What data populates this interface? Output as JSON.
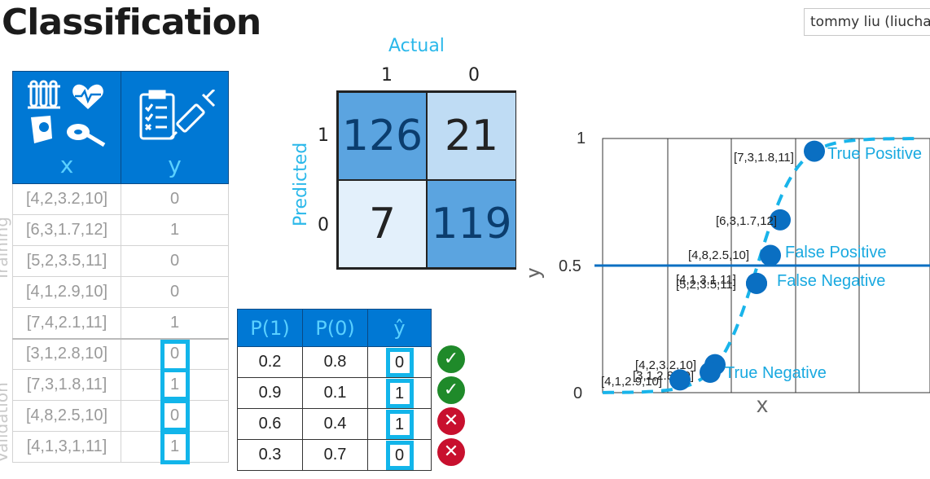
{
  "title": "Classification",
  "user": "tommy liu (liuchangwei@outlook.com)",
  "colors": {
    "accent": "#0078d4",
    "highlight": "#12b5ea",
    "label": "#2bb8ea"
  },
  "data_table": {
    "headers": [
      "x",
      "y"
    ],
    "header_icons": [
      "test-tubes-icon",
      "heart-rate-icon",
      "stethoscope-icon",
      "tape-measure-icon",
      "clipboard-checklist-icon",
      "syringe-icon"
    ],
    "training_label": "Training",
    "validation_label": "Validation",
    "training_rows": [
      {
        "x": "[4,2,3.2,10]",
        "y": "0"
      },
      {
        "x": "[6,3,1.7,12]",
        "y": "1"
      },
      {
        "x": "[5,2,3.5,11]",
        "y": "0"
      },
      {
        "x": "[4,1,2.9,10]",
        "y": "0"
      },
      {
        "x": "[7,4,2.1,11]",
        "y": "1"
      }
    ],
    "validation_rows": [
      {
        "x": "[3,1,2.8,10]",
        "y": "0"
      },
      {
        "x": "[7,3,1.8,11]",
        "y": "1"
      },
      {
        "x": "[4,8,2.5,10]",
        "y": "0"
      },
      {
        "x": "[4,1,3,1,11]",
        "y": "1"
      }
    ]
  },
  "confusion_matrix": {
    "actual_label": "Actual",
    "predicted_label": "Predicted",
    "col_labels": [
      "1",
      "0"
    ],
    "row_labels": [
      "1",
      "0"
    ],
    "cells": [
      {
        "value": "126",
        "color": "#5ba4e0"
      },
      {
        "value": "21",
        "color": "#bfdcf4"
      },
      {
        "value": "7",
        "color": "#e3f0fb"
      },
      {
        "value": "119",
        "color": "#5ba4e0"
      }
    ]
  },
  "prob_table": {
    "headers": [
      "P(1)",
      "P(0)",
      "ŷ"
    ],
    "rows": [
      {
        "p1": "0.2",
        "p0": "0.8",
        "yhat": "0",
        "correct": true
      },
      {
        "p1": "0.9",
        "p0": "0.1",
        "yhat": "1",
        "correct": true
      },
      {
        "p1": "0.6",
        "p0": "0.4",
        "yhat": "1",
        "correct": false
      },
      {
        "p1": "0.3",
        "p0": "0.7",
        "yhat": "0",
        "correct": false
      }
    ],
    "ok_glyph": "✓",
    "bad_glyph": "✕"
  },
  "chart_data": {
    "type": "scatter",
    "ylabel": "y",
    "xlabel": "x",
    "y_ticks": [
      "1",
      "0.5",
      "0"
    ],
    "threshold": 0.5,
    "curve": "sigmoid",
    "points": [
      {
        "label": "[7,3,1.8,11]",
        "y": 0.95
      },
      {
        "label": "[6,3,1.7,12]",
        "y": 0.68
      },
      {
        "label": "[4,8,2.5,10]",
        "y": 0.54
      },
      {
        "label": "[4,1,3,1,11]",
        "y": 0.43
      },
      {
        "label": "[5,2,3.5,11]",
        "y": 0.43
      },
      {
        "label": "[4,2,3.2,10]",
        "y": 0.11
      },
      {
        "label": "[3,1,2.8,10]",
        "y": 0.08
      },
      {
        "label": "[4,1,2.9,10]",
        "y": 0.05
      }
    ],
    "annotations": [
      "True Positive",
      "False Positive",
      "False Negative",
      "True Negative"
    ]
  }
}
